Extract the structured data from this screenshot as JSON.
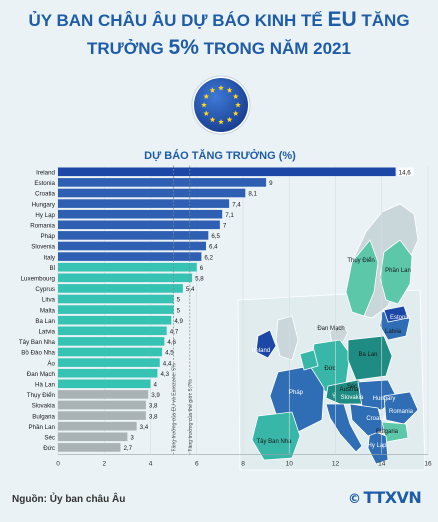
{
  "header": {
    "title_line1_a": "ỦY BAN CHÂU ÂU DỰ BÁO KINH TẾ ",
    "title_line1_b": "EU",
    "title_line1_c": " TĂNG",
    "title_line2_a": "TRƯỞNG ",
    "title_line2_b": "5%",
    "title_line2_c": " TRONG NĂM 2021"
  },
  "footer": {
    "source": "Nguồn: Ủy ban châu Âu",
    "logo_symbol": "©",
    "logo_text": "TTXVN"
  },
  "colors": {
    "title": "#1e5ca8",
    "bar_dark": "#2f5fb3",
    "bar_top": "#1c47a6",
    "bar_teal": "#36c3b3",
    "bar_grey": "#a9b2b4",
    "map_land": "#c9d6da",
    "map_teal": "#38b6a8",
    "map_blue": "#2f6db5",
    "map_dark_teal": "#1f8c83",
    "map_green": "#2fa860"
  },
  "chart_data": {
    "type": "bar",
    "orientation": "horizontal",
    "title": "DỰ BÁO TĂNG TRƯỞNG (%)",
    "categories": [
      "Ireland",
      "Estonia",
      "Croatia",
      "Hungary",
      "Hy Lạp",
      "Romania",
      "Pháp",
      "Slovenia",
      "Italy",
      "Bỉ",
      "Luxembourg",
      "Cyprus",
      "Litva",
      "Malta",
      "Ba Lan",
      "Latvia",
      "Tây Ban Nha",
      "Bồ Đào Nha",
      "Áo",
      "Đan Mạch",
      "Hà Lan",
      "Thụy Điển",
      "Slovakia",
      "Bulgaria",
      "Phần Lan",
      "Séc",
      "Đức"
    ],
    "values": [
      14.6,
      9,
      8.1,
      7.4,
      7.1,
      7,
      6.5,
      6.4,
      6.2,
      6,
      5.8,
      5.4,
      5,
      5,
      4.9,
      4.7,
      4.6,
      4.5,
      4.4,
      4.3,
      4,
      3.9,
      3.8,
      3.8,
      3.4,
      3,
      2.7
    ],
    "value_labels": [
      "14,6",
      "9",
      "8,1",
      "7,4",
      "7,1",
      "7",
      "6,5",
      "6,4",
      "6,2",
      "6",
      "5,8",
      "5,4",
      "5",
      "5",
      "4,9",
      "4,7",
      "4,6",
      "4,5",
      "4,4",
      "4,3",
      "4",
      "3,9",
      "3,8",
      "3,8",
      "3,4",
      "3",
      "2,7"
    ],
    "xlim": [
      0,
      16
    ],
    "xticks": [
      0,
      2,
      4,
      6,
      8,
      10,
      12,
      14,
      16
    ],
    "reference_lines": [
      {
        "value": 5,
        "label": "Tăng trưởng của EU và Eurozone: 5%"
      },
      {
        "value": 5.7,
        "label": "Tăng trưởng của thế giới: 5,7%"
      }
    ]
  },
  "map": {
    "labels": [
      "Thụy Điển",
      "Phần Lan",
      "Estonia",
      "Latvia",
      "Đan Mạch",
      "Ba Lan",
      "Ireland",
      "Đức",
      "Séc",
      "Pháp",
      "Austria",
      "Ý",
      "Slovakia",
      "Hungary",
      "Romania",
      "Croatia",
      "Bulgaria",
      "Hy Lạp",
      "Tây Ban Nha"
    ]
  }
}
